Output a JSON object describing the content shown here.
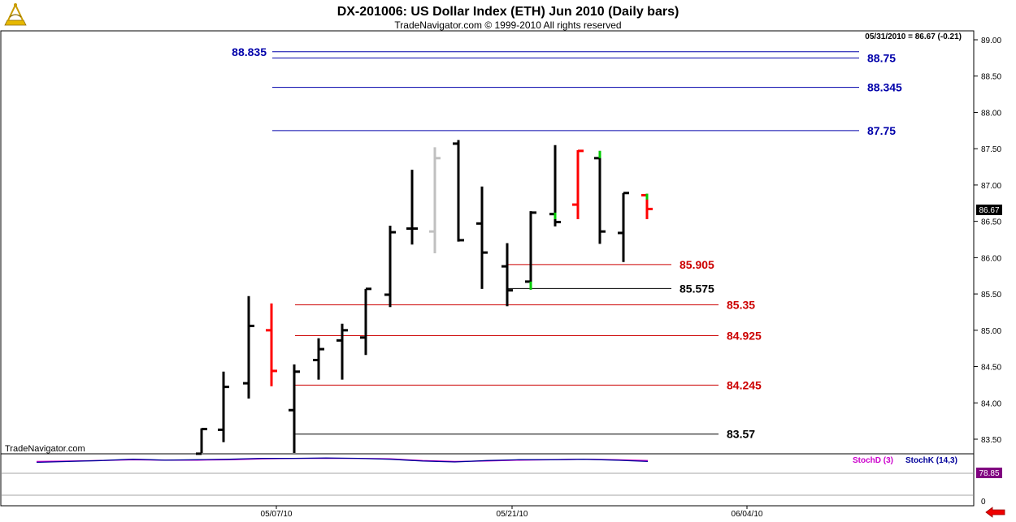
{
  "app": {
    "watermark": "TradeNavigator.com"
  },
  "chart_data": {
    "type": "ohlc",
    "title": "DX-201006:  US Dollar Index (ETH) Jun 2010  (Daily bars)",
    "subtitle": "TradeNavigator.com © 1999-2010 All rights reserved",
    "last_quote": "05/31/2010 = 86.67 (-0.21)",
    "last_price_label": "86.67",
    "y_range": [
      83.3,
      89.15
    ],
    "y_ticks": [
      "83.50",
      "84.00",
      "84.50",
      "85.00",
      "85.50",
      "86.00",
      "86.50",
      "87.00",
      "87.50",
      "88.00",
      "88.50",
      "89.00"
    ],
    "x_ticks": [
      "05/07/10",
      "05/21/10",
      "06/04/10"
    ],
    "grid": false,
    "colors": {
      "up": "#000000",
      "down_red": "#ff0000",
      "gray": "#c0c0c0",
      "green": "#00cc00",
      "level_blue": "#0000aa",
      "level_red": "#cc0000",
      "label_red": "#cc0000",
      "label_dark": "#000000"
    },
    "bars": [
      {
        "o": 83.3,
        "h": 83.65,
        "l": 83.3,
        "c": 83.64,
        "color": "black"
      },
      {
        "o": 83.63,
        "h": 84.43,
        "l": 83.46,
        "c": 84.22,
        "color": "black"
      },
      {
        "o": 84.27,
        "h": 85.47,
        "l": 84.06,
        "c": 85.06,
        "color": "black"
      },
      {
        "o": 85.0,
        "h": 85.37,
        "l": 84.23,
        "c": 84.44,
        "color": "red"
      },
      {
        "o": 83.9,
        "h": 84.53,
        "l": 83.3,
        "c": 84.43,
        "color": "black"
      },
      {
        "o": 84.59,
        "h": 84.89,
        "l": 84.32,
        "c": 84.74,
        "color": "black"
      },
      {
        "o": 84.86,
        "h": 85.09,
        "l": 84.32,
        "c": 85.0,
        "color": "black"
      },
      {
        "o": 84.9,
        "h": 85.57,
        "l": 84.66,
        "c": 85.57,
        "color": "black"
      },
      {
        "o": 85.49,
        "h": 86.44,
        "l": 85.32,
        "c": 86.35,
        "color": "black"
      },
      {
        "o": 86.4,
        "h": 87.21,
        "l": 86.18,
        "c": 86.4,
        "color": "black"
      },
      {
        "o": 86.36,
        "h": 87.52,
        "l": 86.06,
        "c": 87.37,
        "color": "gray"
      },
      {
        "o": 87.57,
        "h": 87.62,
        "l": 86.22,
        "c": 86.24,
        "color": "black"
      },
      {
        "o": 86.47,
        "h": 86.98,
        "l": 85.57,
        "c": 86.07,
        "color": "black"
      },
      {
        "o": 85.88,
        "h": 86.2,
        "l": 85.33,
        "c": 85.55,
        "color": "black"
      },
      {
        "o": 85.67,
        "h": 86.64,
        "l": 85.56,
        "c": 86.62,
        "color": "black"
      },
      {
        "o": 86.6,
        "h": 87.55,
        "l": 86.43,
        "c": 86.49,
        "color": "black"
      },
      {
        "o": 86.73,
        "h": 87.48,
        "l": 86.53,
        "c": 87.47,
        "color": "red"
      },
      {
        "o": 87.37,
        "h": 87.47,
        "l": 86.19,
        "c": 86.36,
        "color": "black"
      },
      {
        "o": 86.34,
        "h": 86.89,
        "l": 85.94,
        "c": 86.89,
        "color": "black"
      },
      {
        "o": 86.86,
        "h": 86.88,
        "l": 86.53,
        "c": 86.67,
        "color": "red"
      }
    ],
    "levels": [
      {
        "label": "88.835",
        "value": 88.835,
        "color": "blue",
        "label_side": "left"
      },
      {
        "label": "88.75",
        "value": 88.75,
        "color": "blue",
        "label_side": "right"
      },
      {
        "label": "88.345",
        "value": 88.345,
        "color": "blue",
        "label_side": "right"
      },
      {
        "label": "87.75",
        "value": 87.75,
        "color": "blue",
        "label_side": "right"
      },
      {
        "label": "85.905",
        "value": 85.905,
        "color": "red",
        "label_side": "right"
      },
      {
        "label": "85.575",
        "value": 85.575,
        "color": "dark",
        "label_side": "right"
      },
      {
        "label": "85.35",
        "value": 85.35,
        "color": "red",
        "label_side": "right"
      },
      {
        "label": "84.925",
        "value": 84.925,
        "color": "red",
        "label_side": "right"
      },
      {
        "label": "84.245",
        "value": 84.245,
        "color": "red",
        "label_side": "right"
      },
      {
        "label": "83.57",
        "value": 83.57,
        "color": "dark",
        "label_side": "right"
      }
    ],
    "indicator": {
      "legend": [
        "StochD (3)",
        "StochK (14,3)"
      ],
      "last_value": "78.85",
      "y_ticks": [
        "0"
      ],
      "stochD": [
        77,
        78,
        79,
        81,
        80,
        80,
        81,
        83,
        84,
        84,
        84,
        83,
        79,
        77,
        78,
        80,
        81,
        82,
        81,
        79
      ],
      "stochK": [
        75,
        77,
        79,
        82,
        80,
        81,
        82,
        84,
        84,
        85,
        84,
        82,
        78,
        76,
        79,
        81,
        81,
        82,
        80,
        77
      ]
    }
  }
}
